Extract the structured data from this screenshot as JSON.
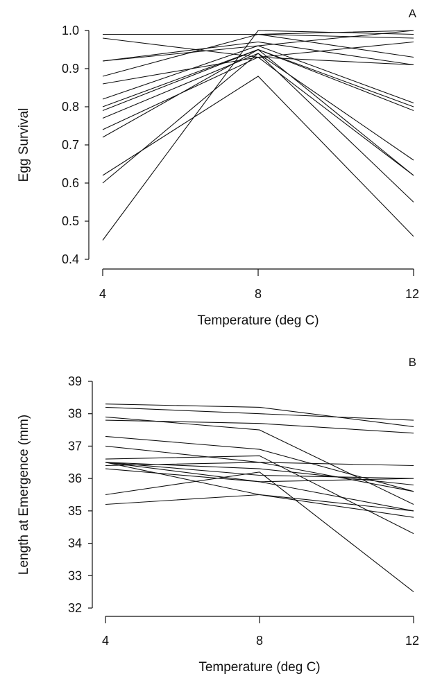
{
  "chart_data": [
    {
      "panel_letter": "A",
      "type": "line",
      "x": [
        4,
        8,
        12
      ],
      "xlabel": "Temperature (deg C)",
      "ylabel": "Egg Survival",
      "xlim": [
        4,
        12
      ],
      "ylim": [
        0.4,
        1.0
      ],
      "x_ticks": [
        "4",
        "8",
        "12"
      ],
      "y_ticks": [
        "0.4",
        "0.5",
        "0.6",
        "0.7",
        "0.8",
        "0.9",
        "1.0"
      ],
      "series": [
        {
          "values": [
            0.99,
            0.99,
            1.0
          ]
        },
        {
          "values": [
            0.99,
            0.99,
            0.98
          ]
        },
        {
          "values": [
            0.98,
            0.93,
            0.91
          ]
        },
        {
          "values": [
            0.92,
            0.96,
            1.0
          ]
        },
        {
          "values": [
            0.92,
            0.97,
            0.91
          ]
        },
        {
          "values": [
            0.88,
            0.99,
            0.93
          ]
        },
        {
          "values": [
            0.86,
            0.93,
            0.97
          ]
        },
        {
          "values": [
            0.82,
            0.96,
            0.81
          ]
        },
        {
          "values": [
            0.8,
            0.95,
            0.8
          ]
        },
        {
          "values": [
            0.79,
            0.95,
            0.79
          ]
        },
        {
          "values": [
            0.77,
            0.94,
            0.66
          ]
        },
        {
          "values": [
            0.74,
            0.93,
            0.62
          ]
        },
        {
          "values": [
            0.72,
            0.95,
            0.62
          ]
        },
        {
          "values": [
            0.62,
            0.88,
            0.46
          ]
        },
        {
          "values": [
            0.6,
            0.94,
            0.55
          ]
        },
        {
          "values": [
            0.45,
            1.0,
            0.99
          ]
        }
      ]
    },
    {
      "panel_letter": "B",
      "type": "line",
      "x": [
        4,
        8,
        12
      ],
      "xlabel": "Temperature (deg C)",
      "ylabel": "Length at Emergence (mm)",
      "xlim": [
        4,
        12
      ],
      "ylim": [
        32,
        39
      ],
      "x_ticks": [
        "4",
        "8",
        "12"
      ],
      "y_ticks": [
        "32",
        "33",
        "34",
        "35",
        "36",
        "37",
        "38",
        "39"
      ],
      "series": [
        {
          "values": [
            38.3,
            38.2,
            37.6
          ]
        },
        {
          "values": [
            38.2,
            38.0,
            37.8
          ]
        },
        {
          "values": [
            37.9,
            37.5,
            35.2
          ]
        },
        {
          "values": [
            37.8,
            37.7,
            37.4
          ]
        },
        {
          "values": [
            37.3,
            36.9,
            35.6
          ]
        },
        {
          "values": [
            37.0,
            36.5,
            35.6
          ]
        },
        {
          "values": [
            36.6,
            36.7,
            34.3
          ]
        },
        {
          "values": [
            36.5,
            35.5,
            34.8
          ]
        },
        {
          "values": [
            36.5,
            36.3,
            35.8
          ]
        },
        {
          "values": [
            36.4,
            36.5,
            36.4
          ]
        },
        {
          "values": [
            36.5,
            36.1,
            36.0
          ]
        },
        {
          "values": [
            36.3,
            35.9,
            36.0
          ]
        },
        {
          "values": [
            36.5,
            35.9,
            35.0
          ]
        },
        {
          "values": [
            35.5,
            36.2,
            32.5
          ]
        },
        {
          "values": [
            35.2,
            35.5,
            35.0
          ]
        }
      ]
    }
  ]
}
